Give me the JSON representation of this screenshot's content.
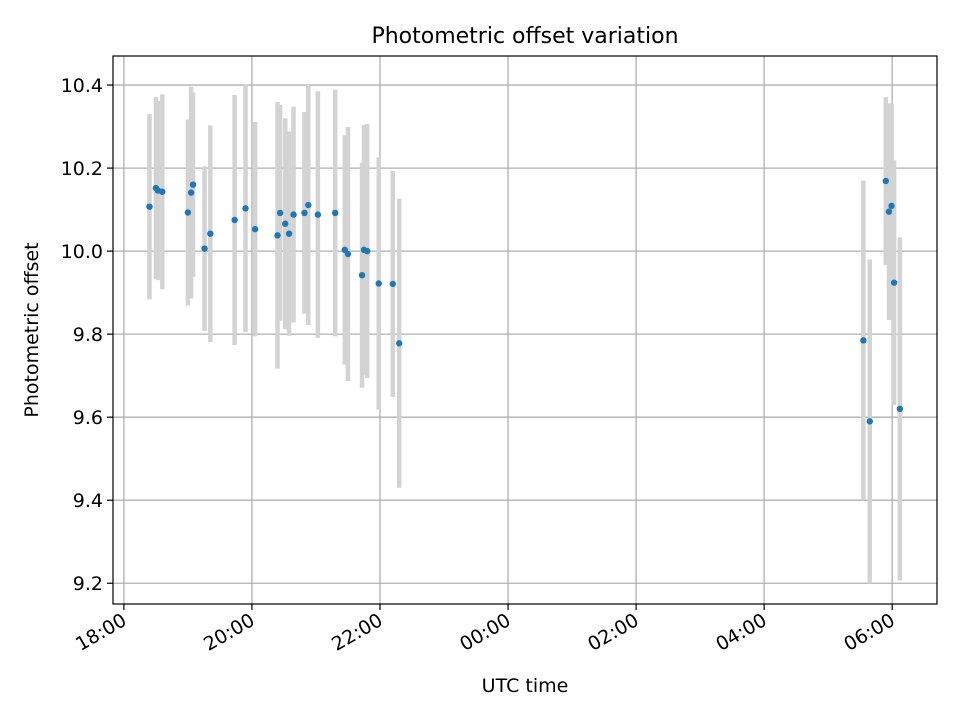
{
  "chart_data": {
    "type": "scatter",
    "title": "Photometric offset variation",
    "xlabel": "UTC time",
    "ylabel": "Photometric offset",
    "grid": true,
    "x_unit": "hours",
    "xlim": [
      17.83,
      30.7
    ],
    "ylim": [
      9.15,
      10.47
    ],
    "x_ticks": [
      {
        "value": 18,
        "label": "18:00"
      },
      {
        "value": 20,
        "label": "20:00"
      },
      {
        "value": 22,
        "label": "22:00"
      },
      {
        "value": 24,
        "label": "00:00"
      },
      {
        "value": 26,
        "label": "02:00"
      },
      {
        "value": 28,
        "label": "04:00"
      },
      {
        "value": 30,
        "label": "06:00"
      }
    ],
    "y_ticks": [
      {
        "value": 9.2,
        "label": "9.2"
      },
      {
        "value": 9.4,
        "label": "9.4"
      },
      {
        "value": 9.6,
        "label": "9.6"
      },
      {
        "value": 9.8,
        "label": "9.8"
      },
      {
        "value": 10.0,
        "label": "10.0"
      },
      {
        "value": 10.2,
        "label": "10.2"
      },
      {
        "value": 10.4,
        "label": "10.4"
      }
    ],
    "colors": {
      "point": "#1f77b4",
      "errorbar": "#d3d3d3",
      "grid": "#b0b0b0"
    },
    "points": [
      {
        "x": 18.4,
        "y": 10.107,
        "err": 0.223
      },
      {
        "x": 18.5,
        "y": 10.152,
        "err": 0.219
      },
      {
        "x": 18.53,
        "y": 10.146,
        "err": 0.216
      },
      {
        "x": 18.6,
        "y": 10.143,
        "err": 0.235
      },
      {
        "x": 19.0,
        "y": 10.093,
        "err": 0.224
      },
      {
        "x": 19.05,
        "y": 10.141,
        "err": 0.255
      },
      {
        "x": 19.08,
        "y": 10.16,
        "err": 0.222
      },
      {
        "x": 19.26,
        "y": 10.006,
        "err": 0.198
      },
      {
        "x": 19.35,
        "y": 10.042,
        "err": 0.261
      },
      {
        "x": 19.73,
        "y": 10.075,
        "err": 0.301
      },
      {
        "x": 19.9,
        "y": 10.103,
        "err": 0.298
      },
      {
        "x": 20.05,
        "y": 10.053,
        "err": 0.258
      },
      {
        "x": 20.4,
        "y": 10.038,
        "err": 0.321
      },
      {
        "x": 20.44,
        "y": 10.092,
        "err": 0.26
      },
      {
        "x": 20.52,
        "y": 10.066,
        "err": 0.254
      },
      {
        "x": 20.58,
        "y": 10.042,
        "err": 0.246
      },
      {
        "x": 20.65,
        "y": 10.088,
        "err": 0.26
      },
      {
        "x": 20.82,
        "y": 10.092,
        "err": 0.243
      },
      {
        "x": 20.88,
        "y": 10.111,
        "err": 0.289
      },
      {
        "x": 21.03,
        "y": 10.088,
        "err": 0.297
      },
      {
        "x": 21.3,
        "y": 10.092,
        "err": 0.297
      },
      {
        "x": 21.45,
        "y": 10.003,
        "err": 0.276
      },
      {
        "x": 21.5,
        "y": 9.993,
        "err": 0.306
      },
      {
        "x": 21.72,
        "y": 9.942,
        "err": 0.271
      },
      {
        "x": 21.75,
        "y": 10.003,
        "err": 0.301
      },
      {
        "x": 21.8,
        "y": 10.0,
        "err": 0.306
      },
      {
        "x": 21.98,
        "y": 9.922,
        "err": 0.304
      },
      {
        "x": 22.2,
        "y": 9.921,
        "err": 0.272
      },
      {
        "x": 22.3,
        "y": 9.778,
        "err": 0.348
      },
      {
        "x": 29.55,
        "y": 9.785,
        "err": 0.385
      },
      {
        "x": 29.65,
        "y": 9.59,
        "err": 0.39
      },
      {
        "x": 29.9,
        "y": 10.169,
        "err": 0.202
      },
      {
        "x": 29.95,
        "y": 10.095,
        "err": 0.261
      },
      {
        "x": 29.99,
        "y": 10.109,
        "err": 0.245
      },
      {
        "x": 30.03,
        "y": 9.924,
        "err": 0.295
      },
      {
        "x": 30.12,
        "y": 9.62,
        "err": 0.413
      }
    ]
  }
}
